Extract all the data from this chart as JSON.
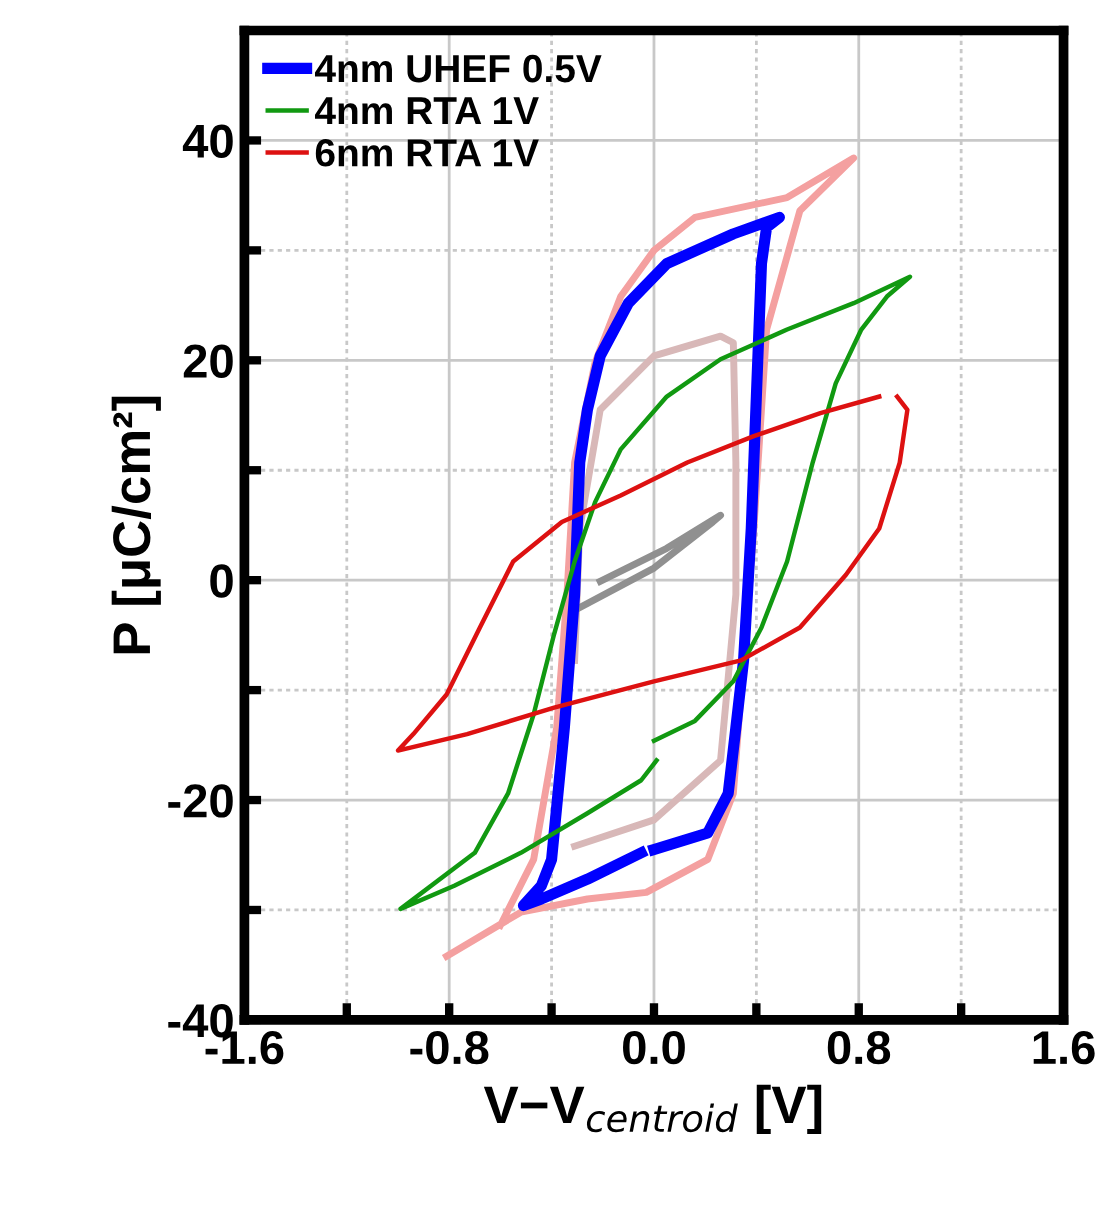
{
  "chart_data": {
    "type": "line",
    "xlabel": "V−V$_{centroid}$ [V]",
    "ylabel": "P [μC/cm²]",
    "xlim": [
      -1.6,
      1.6
    ],
    "ylim": [
      -40,
      50
    ],
    "xticks": [
      {
        "value": -1.6,
        "label": "-1.6"
      },
      {
        "value": -1.2,
        "label": null
      },
      {
        "value": -0.8,
        "label": "-0.8"
      },
      {
        "value": -0.4,
        "label": null
      },
      {
        "value": 0,
        "label": "0.0"
      },
      {
        "value": 0.4,
        "label": null
      },
      {
        "value": 0.8,
        "label": "0.8"
      },
      {
        "value": 1.2,
        "label": null
      },
      {
        "value": 1.6,
        "label": "1.6"
      }
    ],
    "yticks": [
      -40,
      {
        "value": -30,
        "label": null
      },
      -20,
      {
        "value": -10,
        "label": null
      },
      0,
      {
        "value": 10,
        "label": null
      },
      20,
      {
        "value": 30,
        "label": null
      },
      40
    ],
    "grid": true,
    "legend": "top left",
    "marker": "none",
    "line_style": "solid",
    "series": [
      {
        "color": "#f4a0a0",
        "x": [
          -0.81,
          -0.52,
          -0.26,
          -0.03,
          0.21,
          0.31,
          0.35,
          0.39,
          0.44,
          0.57,
          0.78,
          0.52,
          0.16,
          0,
          -0.13,
          -0.23,
          -0.31,
          -0.34,
          -0.38,
          -0.47,
          -0.6
        ],
        "values": [
          -34.2,
          -30.2,
          -29.0,
          -28.4,
          -25.4,
          -19.4,
          -7.3,
          4.7,
          22.8,
          33.6,
          38.4,
          34.8,
          33.0,
          30.0,
          25.8,
          19.8,
          10.7,
          -1.3,
          -13.4,
          -25.4,
          -31.4
        ]
      },
      {
        "color": "#d8b8b8",
        "x": [
          -0.31,
          0,
          0.26,
          0.32,
          0.32,
          0.31,
          0.26,
          0,
          -0.21,
          -0.29,
          -0.31
        ],
        "values": [
          -24.2,
          -21.8,
          -16.4,
          -1.3,
          10.7,
          21.6,
          22.2,
          20.4,
          15.5,
          4.7,
          -7.3
        ]
      },
      {
        "color": "#909090",
        "x": [
          -0.29,
          0,
          0.23,
          0.26,
          0.05,
          -0.21
        ],
        "values": [
          -2.5,
          1.1,
          5.3,
          5.9,
          2.9,
          -0.1
        ]
      },
      {
        "name": "4nm UHEF 0.5V",
        "color": "#0000ff",
        "x": [
          0,
          0.21,
          0.29,
          0.32,
          0.35,
          0.38,
          0.4,
          0.42,
          0.44,
          0.49,
          0.31,
          0.05,
          -0.1,
          -0.21,
          -0.26,
          -0.29,
          -0.31,
          -0.35,
          -0.4,
          -0.44,
          -0.51,
          -0.44,
          -0.26,
          -0.05
        ],
        "values": [
          -24.5,
          -23,
          -19.4,
          -13.4,
          -7.3,
          4.7,
          16.7,
          28.8,
          32.1,
          33,
          31.5,
          28.8,
          25.2,
          20.4,
          15.5,
          10.7,
          -1.3,
          -13.4,
          -25.4,
          -27.8,
          -29.6,
          -29,
          -27.2,
          -24.8
        ]
      },
      {
        "name": "4nm RTA 1V",
        "color": "#119911",
        "x": [
          0,
          0.16,
          0.31,
          0.42,
          0.52,
          0.62,
          0.71,
          0.81,
          0.91,
          1.0,
          0.78,
          0.52,
          0.26,
          0.05,
          -0.13,
          -0.23,
          -0.31,
          -0.39,
          -0.47,
          -0.57,
          -0.7,
          -0.99,
          -0.78,
          -0.52,
          -0.26,
          -0.05,
          0.01
        ],
        "values": [
          -14.6,
          -12.8,
          -9.2,
          -4.3,
          1.7,
          10.7,
          17.9,
          22.8,
          25.8,
          27.6,
          25.2,
          22.8,
          20.1,
          16.7,
          11.9,
          7.1,
          1.7,
          -4.9,
          -12.2,
          -19.4,
          -24.8,
          -29.9,
          -27.8,
          -24.8,
          -21.2,
          -18.2,
          -16.4
        ]
      },
      {
        "name": "6nm RTA 1V",
        "color": "#dd1111",
        "x": [
          0.95,
          0.99,
          0.96,
          0.88,
          0.75,
          0.57,
          0.34,
          0,
          -0.39,
          -0.73,
          -1.0,
          -0.94,
          -0.81,
          -0.68,
          -0.55,
          -0.36,
          -0.13,
          0.13,
          0.39,
          0.65,
          0.88
        ],
        "values": [
          16.7,
          15.5,
          10.7,
          4.7,
          0.5,
          -4.3,
          -7.3,
          -9.2,
          -11.6,
          -14.0,
          -15.5,
          -14.0,
          -10.4,
          -4.3,
          1.7,
          5.3,
          7.7,
          10.7,
          13.1,
          15.2,
          16.7
        ]
      }
    ]
  }
}
